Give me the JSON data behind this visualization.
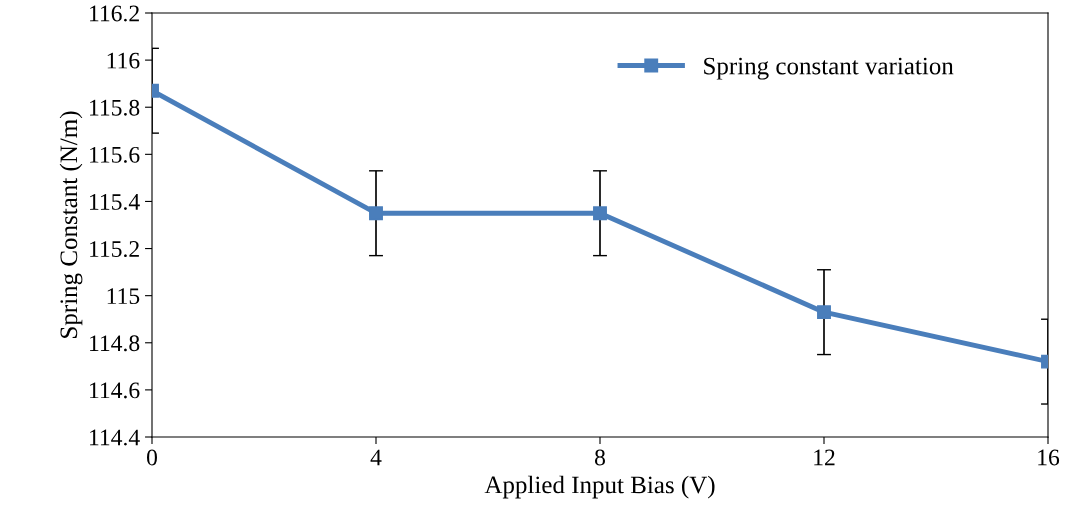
{
  "chart_data": {
    "type": "line",
    "xlabel": "Applied Input Bias (V)",
    "ylabel": "Spring Constant (N/m)",
    "x": [
      0,
      4,
      8,
      12,
      16
    ],
    "series": [
      {
        "name": "Spring constant variation",
        "color": "#4a7ebb",
        "values": [
          115.87,
          115.35,
          115.35,
          114.93,
          114.72
        ],
        "errors": [
          0.18,
          0.18,
          0.18,
          0.18,
          0.18
        ]
      }
    ],
    "xlim": [
      0,
      16
    ],
    "xticks": [
      0,
      4,
      8,
      12,
      16
    ],
    "ylim": [
      114.4,
      116.2
    ],
    "yticks": [
      114.4,
      114.6,
      114.8,
      115,
      115.2,
      115.4,
      115.6,
      115.8,
      116,
      116.2
    ],
    "marker": "square",
    "line_style": "solid",
    "legend": "top right",
    "grid": false
  }
}
